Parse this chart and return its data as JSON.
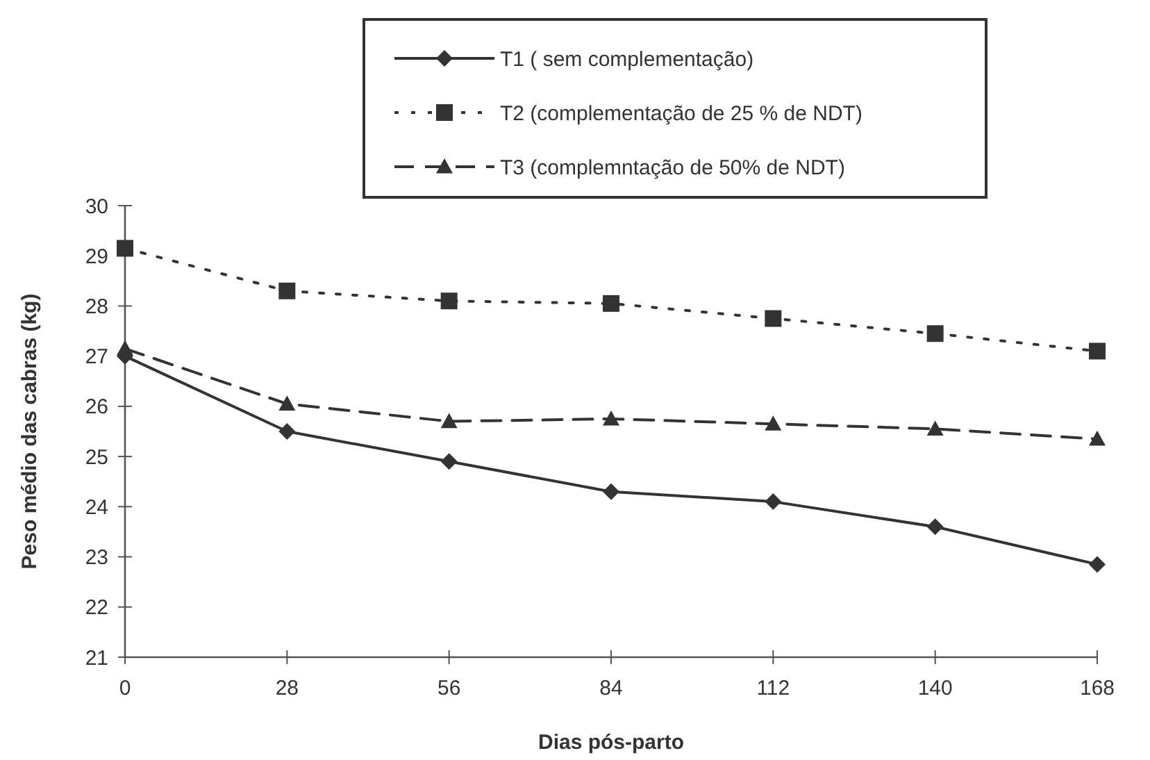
{
  "chart_data": {
    "type": "line",
    "xlabel": "Dias pós-parto",
    "ylabel": "Peso médio das cabras (kg)",
    "x": [
      0,
      28,
      56,
      84,
      112,
      140,
      168
    ],
    "xlim": [
      0,
      168
    ],
    "xticks": [
      0,
      28,
      56,
      84,
      112,
      140,
      168
    ],
    "ylim": [
      21,
      30
    ],
    "yticks": [
      21,
      22,
      23,
      24,
      25,
      26,
      27,
      28,
      29,
      30
    ],
    "legend": "top",
    "grid": false,
    "series": [
      {
        "name": "T1 ( sem complementação)",
        "color": "#333333",
        "marker": "diamond",
        "line_style": "solid",
        "values": [
          27.0,
          25.5,
          24.9,
          24.3,
          24.1,
          23.6,
          22.85
        ]
      },
      {
        "name": "T2 (complementação de 25 % de NDT)",
        "color": "#333333",
        "marker": "square",
        "line_style": "dotted",
        "values": [
          29.15,
          28.3,
          28.1,
          28.05,
          27.75,
          27.45,
          27.1
        ]
      },
      {
        "name": "T3 (complemntação de 50% de NDT)",
        "color": "#333333",
        "marker": "triangle",
        "line_style": "dashed",
        "values": [
          27.15,
          26.05,
          25.7,
          25.75,
          25.65,
          25.55,
          25.35
        ]
      }
    ]
  }
}
